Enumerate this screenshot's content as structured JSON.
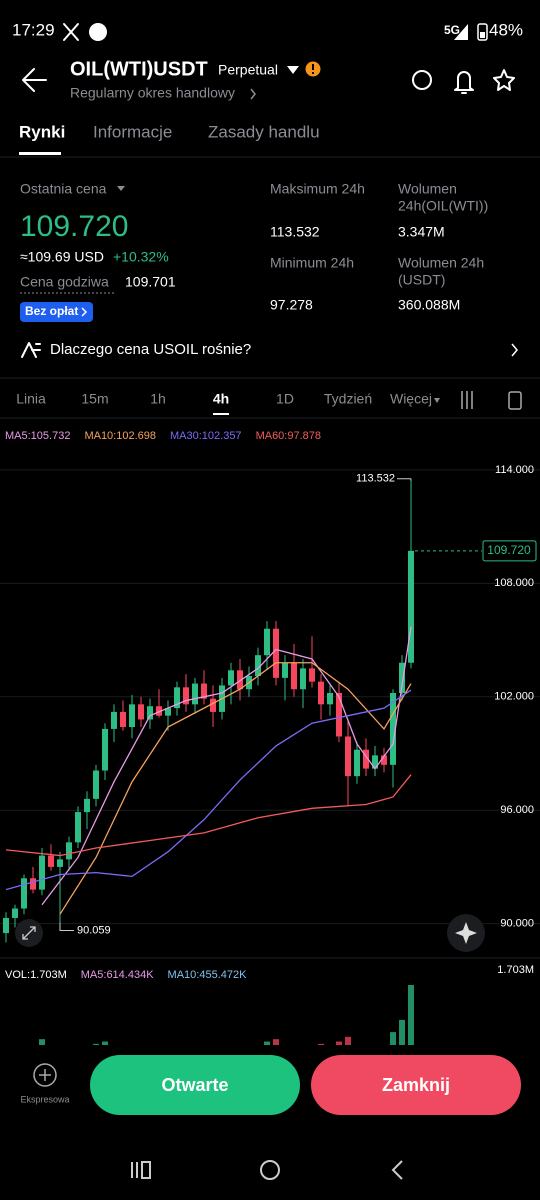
{
  "status_bar": {
    "time": "17:29",
    "network": "5G",
    "battery": "48%"
  },
  "header": {
    "title": "OIL(WTI)USDT",
    "badge": "Perpetual",
    "subtitle": "Regularny okres handlowy"
  },
  "tabs": [
    "Rynki",
    "Informacje",
    "Zasady handlu"
  ],
  "stats": {
    "last_price_label": "Ostatnia cena",
    "last_price": "109.720",
    "usd_price": "≈109.69 USD",
    "change": "+10.32%",
    "fair_price_label": "Cena godziwa",
    "fair_price": "109.701",
    "fee_badge": "Bez opłat",
    "high_label": "Maksimum 24h",
    "high": "113.532",
    "low_label": "Minimum 24h",
    "low": "97.278",
    "vol_base_label": [
      "Wolumen",
      "24h(OIL(WTI))"
    ],
    "vol_base": "3.347M",
    "vol_quote_label": [
      "Wolumen 24h",
      "(USDT)"
    ],
    "vol_quote": "360.088M"
  },
  "promo": "Dlaczego cena USOIL rośnie?",
  "intervals": [
    "Linia",
    "15m",
    "1h",
    "4h",
    "1D",
    "Tydzień",
    "Więcej"
  ],
  "chart": {
    "ma": [
      {
        "label": "MA5:105.732",
        "color": "#e99be6",
        "points": [
          [
            4,
            91
          ],
          [
            8,
            93.5
          ],
          [
            12,
            97.5
          ],
          [
            16,
            101
          ],
          [
            20,
            101.8
          ],
          [
            24,
            102.2
          ],
          [
            28,
            103.5
          ],
          [
            30,
            104.5
          ],
          [
            34,
            104
          ],
          [
            37,
            102
          ],
          [
            39,
            99.5
          ],
          [
            41,
            98.2
          ],
          [
            43,
            99.5
          ],
          [
            45,
            105.7
          ]
        ]
      },
      {
        "label": "MA10:102.698",
        "color": "#f5a35c",
        "points": [
          [
            6,
            90.5
          ],
          [
            10,
            93.5
          ],
          [
            14,
            97.5
          ],
          [
            18,
            100.4
          ],
          [
            22,
            101.4
          ],
          [
            26,
            102.4
          ],
          [
            30,
            103.8
          ],
          [
            34,
            103.8
          ],
          [
            38,
            102.4
          ],
          [
            42,
            100.3
          ],
          [
            45,
            102.7
          ]
        ]
      },
      {
        "label": "MA30:102.357",
        "color": "#7b6cf6",
        "points": [
          [
            0,
            91.8
          ],
          [
            6,
            92.6
          ],
          [
            10,
            92.7
          ],
          [
            14,
            92.5
          ],
          [
            18,
            93.8
          ],
          [
            22,
            95.5
          ],
          [
            26,
            97.6
          ],
          [
            30,
            99.4
          ],
          [
            34,
            100.6
          ],
          [
            38,
            101
          ],
          [
            42,
            101.4
          ],
          [
            45,
            102.357
          ]
        ]
      },
      {
        "label": "MA60:97.878",
        "color": "#f25c5c",
        "points": [
          [
            0,
            93.9
          ],
          [
            6,
            93.6
          ],
          [
            10,
            94
          ],
          [
            16,
            94.4
          ],
          [
            22,
            94.8
          ],
          [
            28,
            95.6
          ],
          [
            34,
            96.1
          ],
          [
            40,
            96.3
          ],
          [
            43,
            96.7
          ],
          [
            45,
            97.878
          ]
        ]
      }
    ],
    "ylim": [
      88.5,
      115
    ],
    "yticks": [
      {
        "value": 114,
        "label": "114.000"
      },
      {
        "value": 108,
        "label": "108.000"
      },
      {
        "value": 102,
        "label": "102.000"
      },
      {
        "value": 96,
        "label": "96.000"
      },
      {
        "value": 90,
        "label": "90.000"
      }
    ],
    "grid": true,
    "last_price": {
      "value": 109.72,
      "label": "109.720"
    },
    "high_marker": {
      "value": 113.532,
      "label": "113.532"
    },
    "low_marker": {
      "value": 90.059,
      "label": "90.059"
    },
    "up_color": "#2ebd85",
    "down_color": "#f6465d",
    "candles": [
      [
        89.5,
        90.6,
        89,
        90.3
      ],
      [
        90.3,
        91,
        89.8,
        90.8
      ],
      [
        90.8,
        92.6,
        90.5,
        92.4
      ],
      [
        92.4,
        93,
        91.6,
        91.8
      ],
      [
        91.8,
        94,
        91.5,
        93.6
      ],
      [
        93.6,
        94.2,
        92.8,
        93
      ],
      [
        93,
        93.8,
        90.059,
        93.4
      ],
      [
        93.4,
        94.6,
        92.8,
        94.3
      ],
      [
        94.3,
        96.2,
        94,
        95.9
      ],
      [
        95.9,
        97,
        95,
        96.6
      ],
      [
        96.6,
        98.4,
        96.2,
        98.1
      ],
      [
        98.1,
        100.6,
        97.6,
        100.3
      ],
      [
        100.3,
        101.6,
        99.6,
        101.2
      ],
      [
        101.2,
        101.8,
        100.2,
        100.4
      ],
      [
        100.4,
        102.1,
        99.8,
        101.6
      ],
      [
        101.6,
        102,
        100.4,
        100.8
      ],
      [
        100.8,
        101.9,
        100.3,
        101.5
      ],
      [
        101.5,
        102.4,
        100.9,
        101
      ],
      [
        101,
        101.8,
        100.2,
        101.4
      ],
      [
        101.4,
        102.8,
        101,
        102.5
      ],
      [
        102.5,
        103.2,
        101.2,
        101.6
      ],
      [
        101.6,
        103,
        101.1,
        102.7
      ],
      [
        102.7,
        103.4,
        101.6,
        101.9
      ],
      [
        101.9,
        102.6,
        100.4,
        101.2
      ],
      [
        101.2,
        103,
        100.8,
        102.6
      ],
      [
        102.6,
        103.8,
        101.6,
        103.4
      ],
      [
        103.4,
        104,
        101.8,
        102.4
      ],
      [
        102.4,
        103.6,
        102,
        103.1
      ],
      [
        103.1,
        104.6,
        102.6,
        104.2
      ],
      [
        104.2,
        106,
        103.4,
        105.6
      ],
      [
        105.6,
        106,
        102.6,
        103
      ],
      [
        103,
        104.2,
        101.8,
        103.8
      ],
      [
        103.8,
        104.8,
        102,
        102.4
      ],
      [
        102.4,
        104,
        101.4,
        103.5
      ],
      [
        103.5,
        105.2,
        102.5,
        102.8
      ],
      [
        102.8,
        103.2,
        100.8,
        101.6
      ],
      [
        101.6,
        102.6,
        101,
        102.2
      ],
      [
        102.2,
        102.8,
        99.6,
        99.9
      ],
      [
        99.9,
        100.8,
        96.2,
        97.8
      ],
      [
        97.8,
        99.6,
        97.4,
        99.2
      ],
      [
        99.2,
        99.8,
        97.8,
        98.2
      ],
      [
        98.2,
        99.4,
        97.8,
        98.9
      ],
      [
        98.9,
        99.3,
        98,
        98.4
      ],
      [
        98.4,
        102.4,
        97.2,
        102.2
      ],
      [
        102.2,
        104.2,
        101.8,
        103.8
      ],
      [
        103.8,
        113.532,
        103.5,
        109.72
      ]
    ],
    "volume": {
      "label": "VOL:1.703M",
      "ma_labels": [
        {
          "label": "MA5:614.434K",
          "color": "#e99be6"
        },
        {
          "label": "MA10:455.472K",
          "color": "#7ec3f0"
        }
      ],
      "ylim": [
        0,
        1.703
      ],
      "yticks": [
        {
          "value": 1.703,
          "label": "1.703M"
        }
      ],
      "values": [
        0.2,
        0.3,
        0.25,
        0.2,
        0.55,
        0.3,
        0.35,
        0.3,
        0.25,
        0.3,
        0.45,
        0.5,
        0.35,
        0.3,
        0.3,
        0.25,
        0.2,
        0.25,
        0.2,
        0.3,
        0.35,
        0.3,
        0.25,
        0.3,
        0.35,
        0.3,
        0.4,
        0.3,
        0.35,
        0.5,
        0.55,
        0.35,
        0.3,
        0.3,
        0.4,
        0.45,
        0.3,
        0.5,
        0.6,
        0.4,
        0.35,
        0.3,
        0.3,
        0.7,
        0.96,
        1.703
      ]
    }
  },
  "actions": {
    "express": "Ekspresowa",
    "open": "Otwarte",
    "close": "Zamknij"
  }
}
